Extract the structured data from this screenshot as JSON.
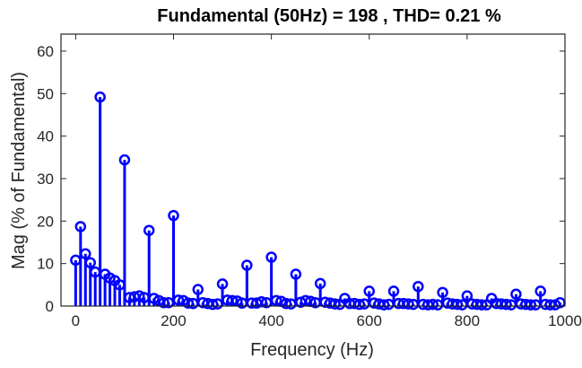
{
  "chart_data": {
    "type": "stem",
    "title": "Fundamental (50Hz) = 198  , THD= 0.21 %",
    "xlabel": "Frequency (Hz)",
    "ylabel": "Mag (% of Fundamental)",
    "xlim": [
      -30,
      1000
    ],
    "ylim": [
      0,
      64
    ],
    "xticks": [
      0,
      200,
      400,
      600,
      800,
      1000
    ],
    "yticks": [
      0,
      10,
      20,
      30,
      40,
      50,
      60
    ],
    "grid": false,
    "marker": "circle",
    "series_color": "#0000ff",
    "axis_color": "#262626",
    "x": [
      0,
      10,
      20,
      30,
      40,
      50,
      60,
      70,
      80,
      90,
      100,
      110,
      120,
      130,
      140,
      150,
      160,
      170,
      180,
      190,
      200,
      210,
      220,
      230,
      240,
      250,
      260,
      270,
      280,
      290,
      300,
      310,
      320,
      330,
      340,
      350,
      360,
      370,
      380,
      390,
      400,
      410,
      420,
      430,
      440,
      450,
      460,
      470,
      480,
      490,
      500,
      510,
      520,
      530,
      540,
      550,
      560,
      570,
      580,
      590,
      600,
      610,
      620,
      630,
      640,
      650,
      660,
      670,
      680,
      690,
      700,
      710,
      720,
      730,
      740,
      750,
      760,
      770,
      780,
      790,
      800,
      810,
      820,
      830,
      840,
      850,
      860,
      870,
      880,
      890,
      900,
      910,
      920,
      930,
      940,
      950,
      960,
      970,
      980,
      990
    ],
    "y": [
      10.8,
      18.7,
      12.3,
      10.2,
      8.0,
      49.2,
      7.5,
      6.6,
      6.0,
      5.0,
      34.4,
      2.0,
      2.2,
      2.4,
      2.0,
      17.8,
      1.8,
      1.3,
      0.8,
      0.8,
      21.3,
      1.4,
      1.3,
      0.7,
      0.6,
      3.9,
      0.8,
      0.6,
      0.4,
      0.5,
      5.2,
      1.4,
      1.3,
      1.2,
      0.7,
      9.6,
      0.7,
      0.7,
      1.0,
      0.8,
      11.5,
      1.3,
      1.1,
      0.6,
      0.5,
      7.5,
      0.9,
      1.3,
      1.1,
      0.8,
      5.3,
      0.9,
      0.7,
      0.5,
      0.4,
      1.8,
      0.6,
      0.6,
      0.4,
      0.5,
      3.5,
      0.7,
      0.5,
      0.3,
      0.4,
      3.5,
      0.6,
      0.6,
      0.5,
      0.4,
      4.6,
      0.4,
      0.3,
      0.4,
      0.3,
      3.2,
      0.7,
      0.5,
      0.4,
      0.3,
      2.4,
      0.5,
      0.4,
      0.3,
      0.3,
      1.8,
      0.6,
      0.5,
      0.4,
      0.3,
      2.8,
      0.5,
      0.4,
      0.3,
      0.3,
      3.5,
      0.4,
      0.3,
      0.3,
      0.8
    ]
  }
}
